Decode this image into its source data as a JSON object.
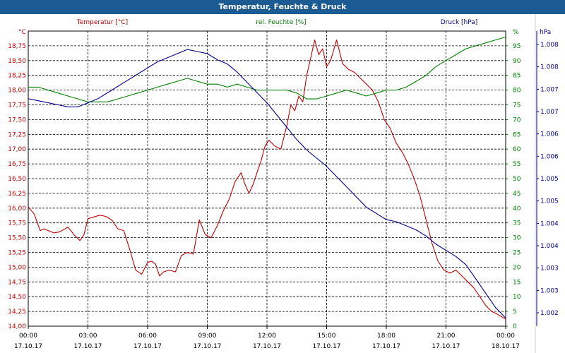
{
  "window": {
    "title": "Temperatur, Feuchte & Druck"
  },
  "chart_data": {
    "type": "line",
    "title": "Temperatur, Feuchte & Druck",
    "x_ticks": [
      {
        "time": "00:00",
        "date": "17.10.17"
      },
      {
        "time": "03:00",
        "date": "17.10.17"
      },
      {
        "time": "06:00",
        "date": "17.10.17"
      },
      {
        "time": "09:00",
        "date": "17.10.17"
      },
      {
        "time": "12:00",
        "date": "17.10.17"
      },
      {
        "time": "15:00",
        "date": "17.10.17"
      },
      {
        "time": "18:00",
        "date": "17.10.17"
      },
      {
        "time": "21:00",
        "date": "17.10.17"
      },
      {
        "time": "00:00",
        "date": "18.10.17"
      }
    ],
    "x_range_hours": [
      0,
      24
    ],
    "axes": {
      "left": {
        "unit": "°C",
        "ylim": [
          14.0,
          19.0
        ],
        "ticks": [
          "14,00",
          "14,25",
          "14,50",
          "14,75",
          "15,00",
          "15,25",
          "15,50",
          "15,75",
          "16,00",
          "16,25",
          "16,50",
          "16,75",
          "17,00",
          "17,25",
          "17,50",
          "17,75",
          "18,00",
          "18,25",
          "18,50",
          "18,75"
        ]
      },
      "right1": {
        "unit": "%",
        "ylim": [
          0,
          100
        ],
        "ticks": [
          "0",
          "5",
          "10",
          "15",
          "20",
          "25",
          "30",
          "35",
          "40",
          "45",
          "50",
          "55",
          "60",
          "65",
          "70",
          "75",
          "80",
          "85",
          "90",
          "95"
        ]
      },
      "right2": {
        "unit": "hPa",
        "ylim": [
          1001.6,
          1008.8
        ],
        "ticks": [
          "1.002",
          "1.003",
          "1.003",
          "1.004",
          "1.004",
          "1.005",
          "1.005",
          "1.006",
          "1.006",
          "1.007",
          "1.007",
          "1.008",
          "1.008"
        ]
      }
    },
    "legend": [
      "Temperatur [°C]",
      "rel. Feuchte [%]",
      "Druck [hPa]"
    ],
    "series": [
      {
        "name": "Temperatur [°C]",
        "axis": "left",
        "color": "#c00000",
        "x": [
          0,
          0.3,
          0.6,
          0.8,
          1.0,
          1.3,
          1.6,
          2.0,
          2.3,
          2.6,
          2.8,
          3.0,
          3.3,
          3.6,
          3.9,
          4.2,
          4.5,
          4.8,
          5.1,
          5.4,
          5.7,
          6.0,
          6.2,
          6.4,
          6.6,
          6.8,
          7.1,
          7.4,
          7.7,
          8.0,
          8.3,
          8.6,
          8.9,
          9.2,
          9.5,
          9.8,
          10.1,
          10.4,
          10.7,
          10.9,
          11.1,
          11.3,
          11.5,
          11.7,
          11.9,
          12.1,
          12.4,
          12.7,
          13.0,
          13.2,
          13.4,
          13.6,
          13.8,
          14.0,
          14.2,
          14.4,
          14.6,
          14.8,
          15.0,
          15.2,
          15.5,
          15.8,
          16.1,
          16.4,
          16.7,
          17.0,
          17.3,
          17.6,
          17.9,
          18.2,
          18.5,
          18.8,
          19.1,
          19.4,
          19.7,
          20.0,
          20.3,
          20.6,
          20.9,
          21.2,
          21.5,
          21.8,
          22.1,
          22.4,
          22.7,
          23.0,
          23.3,
          23.6,
          24.0
        ],
        "values": [
          16.02,
          15.9,
          15.62,
          15.65,
          15.62,
          15.58,
          15.6,
          15.68,
          15.55,
          15.45,
          15.55,
          15.82,
          15.85,
          15.88,
          15.86,
          15.8,
          15.65,
          15.62,
          15.3,
          14.95,
          14.88,
          15.08,
          15.1,
          15.05,
          14.85,
          14.92,
          14.95,
          14.92,
          15.2,
          15.25,
          15.22,
          15.8,
          15.55,
          15.5,
          15.7,
          15.95,
          16.15,
          16.45,
          16.6,
          16.4,
          16.25,
          16.4,
          16.6,
          16.8,
          17.05,
          17.15,
          17.05,
          17.0,
          17.4,
          17.75,
          17.65,
          17.9,
          17.8,
          18.25,
          18.55,
          18.85,
          18.6,
          18.7,
          18.4,
          18.5,
          18.85,
          18.45,
          18.35,
          18.3,
          18.2,
          18.1,
          18.0,
          17.8,
          17.5,
          17.35,
          17.1,
          16.95,
          16.75,
          16.5,
          16.2,
          15.8,
          15.4,
          15.1,
          14.95,
          14.9,
          14.95,
          14.85,
          14.75,
          14.65,
          14.5,
          14.35,
          14.25,
          14.2,
          14.12
        ]
      },
      {
        "name": "rel. Feuchte [%]",
        "axis": "right1",
        "color": "#008000",
        "x": [
          0,
          0.5,
          1.0,
          1.5,
          2.0,
          2.5,
          3.0,
          3.5,
          4.0,
          4.5,
          5.0,
          5.5,
          6.0,
          6.5,
          7.0,
          7.5,
          8.0,
          8.5,
          9.0,
          9.5,
          10.0,
          10.5,
          11.0,
          11.5,
          12.0,
          12.5,
          13.0,
          13.5,
          14.0,
          14.5,
          15.0,
          15.5,
          16.0,
          16.5,
          17.0,
          17.5,
          18.0,
          18.5,
          19.0,
          19.5,
          20.0,
          20.5,
          21.0,
          21.5,
          22.0,
          22.5,
          23.0,
          23.5,
          24.0
        ],
        "values": [
          81,
          81,
          80,
          79,
          78,
          77,
          76,
          76,
          76,
          77,
          78,
          79,
          80,
          81,
          82,
          83,
          84,
          83,
          82,
          82,
          81,
          82,
          81,
          80,
          80,
          80,
          80,
          79,
          77,
          77,
          78,
          79,
          80,
          79,
          78,
          79,
          80,
          80,
          81,
          83,
          85,
          88,
          90,
          92,
          94,
          95,
          96,
          97,
          98
        ]
      },
      {
        "name": "Druck [hPa]",
        "axis": "right2",
        "color": "#00008b",
        "x": [
          0,
          0.5,
          1.0,
          1.5,
          2.0,
          2.5,
          3.0,
          3.5,
          4.0,
          4.5,
          5.0,
          5.5,
          6.0,
          6.5,
          7.0,
          7.5,
          8.0,
          8.5,
          9.0,
          9.5,
          10.0,
          10.5,
          11.0,
          11.5,
          12.0,
          12.5,
          13.0,
          13.5,
          14.0,
          14.5,
          15.0,
          15.5,
          16.0,
          16.5,
          17.0,
          17.5,
          18.0,
          18.5,
          19.0,
          19.5,
          20.0,
          20.5,
          21.0,
          21.5,
          22.0,
          22.5,
          23.0,
          23.5,
          24.0
        ],
        "values": [
          1007.15,
          1007.1,
          1007.05,
          1007.0,
          1006.95,
          1006.95,
          1007.05,
          1007.15,
          1007.3,
          1007.45,
          1007.6,
          1007.75,
          1007.9,
          1008.05,
          1008.15,
          1008.25,
          1008.35,
          1008.3,
          1008.25,
          1008.1,
          1008.0,
          1007.8,
          1007.55,
          1007.3,
          1007.05,
          1006.75,
          1006.45,
          1006.15,
          1005.9,
          1005.7,
          1005.5,
          1005.25,
          1005.0,
          1004.75,
          1004.5,
          1004.35,
          1004.2,
          1004.15,
          1004.05,
          1003.95,
          1003.8,
          1003.6,
          1003.45,
          1003.3,
          1003.1,
          1002.75,
          1002.4,
          1002.05,
          1001.8
        ]
      }
    ]
  }
}
